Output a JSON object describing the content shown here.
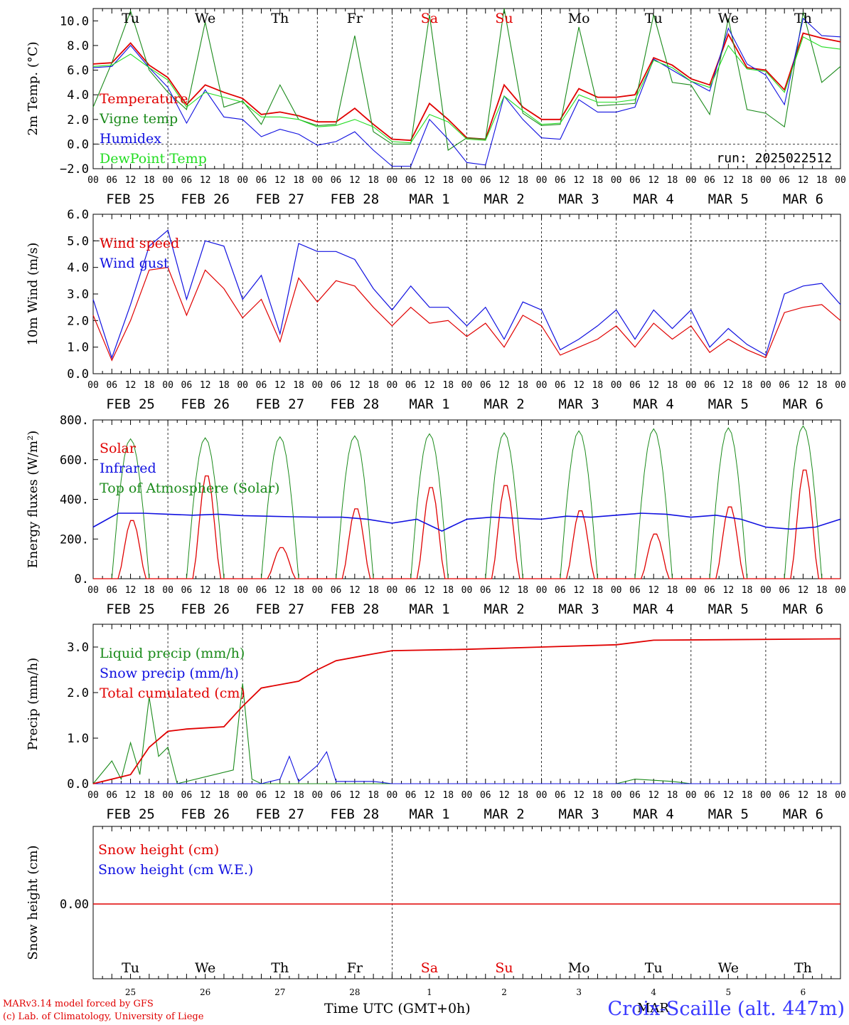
{
  "station": "Croix-Scaille (alt. 447m)",
  "model_credit": "MARv3.14 model forced by GFS",
  "lab_credit": "(c) Lab. of Climatology, University of Liege",
  "x_axis_label": "Time UTC (GMT+0h)",
  "month_label": "MAR",
  "run_label": "run: 2025022512",
  "hour_ticks": [
    "00",
    "06",
    "12",
    "18"
  ],
  "date_labels": [
    "FEB 25",
    "FEB 26",
    "FEB 27",
    "FEB 28",
    "MAR  1",
    "MAR  2",
    "MAR  3",
    "MAR  4",
    "MAR  5",
    "MAR  6"
  ],
  "weekdays": [
    {
      "label": "Tu",
      "color": "#000000"
    },
    {
      "label": "We",
      "color": "#000000"
    },
    {
      "label": "Th",
      "color": "#000000"
    },
    {
      "label": "Fr",
      "color": "#000000"
    },
    {
      "label": "Sa",
      "color": "#e00000"
    },
    {
      "label": "Su",
      "color": "#e00000"
    },
    {
      "label": "Mo",
      "color": "#000000"
    },
    {
      "label": "Tu",
      "color": "#000000"
    },
    {
      "label": "We",
      "color": "#000000"
    },
    {
      "label": "Th",
      "color": "#000000"
    }
  ],
  "day_numbers": [
    "25",
    "26",
    "27",
    "28",
    "1",
    "2",
    "3",
    "4",
    "5",
    "6"
  ],
  "colors": {
    "red": "#e00000",
    "green": "#1a8a1a",
    "blue": "#1010e0",
    "lightgreen": "#22dd22",
    "grid": "#000000"
  },
  "chart_data": [
    {
      "type": "line",
      "ylabel": "2m Temp. (°C)",
      "ylim": [
        -2,
        11
      ],
      "yticks": [
        "−2.0",
        "0.0",
        "2.0",
        "4.0",
        "6.0",
        "8.0",
        "10.0"
      ],
      "ytick_values": [
        -2,
        0,
        2,
        4,
        6,
        8,
        10
      ],
      "ref_line": 0,
      "x_hours": [
        0,
        6,
        12,
        18,
        24,
        30,
        36,
        42,
        48,
        54,
        60,
        66,
        72,
        78,
        84,
        90,
        96,
        102,
        108,
        114,
        120,
        126,
        132,
        138,
        144,
        150,
        156,
        162,
        168,
        174,
        180,
        186,
        192,
        198,
        204,
        210,
        216,
        222,
        228,
        234,
        240
      ],
      "series": [
        {
          "name": "Temperature",
          "color": "red",
          "values": [
            6.5,
            6.6,
            8.2,
            6.4,
            5.4,
            3.2,
            4.8,
            4.2,
            3.7,
            2.4,
            2.6,
            2.3,
            1.8,
            1.8,
            2.9,
            1.6,
            0.4,
            0.3,
            3.3,
            2.0,
            0.5,
            0.4,
            4.8,
            3.0,
            2.0,
            2.0,
            4.5,
            3.8,
            3.8,
            4.0,
            7.0,
            6.4,
            5.3,
            4.8,
            8.9,
            6.2,
            6.0,
            4.4,
            9.0,
            8.6,
            8.3
          ]
        },
        {
          "name": "Vigne temp",
          "color": "green",
          "values": [
            3.0,
            6.6,
            10.8,
            6.0,
            4.2,
            2.8,
            9.9,
            3.0,
            3.5,
            1.6,
            4.8,
            2.0,
            1.5,
            1.6,
            8.8,
            1.0,
            0.0,
            0.0,
            10.5,
            -0.5,
            0.5,
            0.4,
            11.0,
            2.5,
            1.5,
            1.6,
            9.5,
            3.1,
            3.2,
            3.3,
            10.5,
            5.0,
            4.8,
            2.4,
            10.2,
            2.8,
            2.5,
            1.4,
            10.7,
            5.0,
            6.3
          ]
        },
        {
          "name": "Humidex",
          "color": "blue",
          "values": [
            6.2,
            6.3,
            8.0,
            6.2,
            4.6,
            1.7,
            4.4,
            2.2,
            2.0,
            0.6,
            1.2,
            0.8,
            -0.1,
            0.2,
            1.0,
            -0.5,
            -1.8,
            -1.8,
            2.0,
            0.4,
            -1.5,
            -1.7,
            3.9,
            2.0,
            0.5,
            0.4,
            3.6,
            2.6,
            2.6,
            3.0,
            6.9,
            6.0,
            5.1,
            4.3,
            9.4,
            6.5,
            5.6,
            3.2,
            10.2,
            8.8,
            8.7
          ]
        },
        {
          "name": "DewPoint Temp",
          "color": "lightgreen",
          "values": [
            6.3,
            6.4,
            7.3,
            6.2,
            5.2,
            3.0,
            4.2,
            3.8,
            3.4,
            2.2,
            2.2,
            2.0,
            1.4,
            1.5,
            2.0,
            1.4,
            0.2,
            0.1,
            2.4,
            1.8,
            0.4,
            0.3,
            3.9,
            2.7,
            1.6,
            1.7,
            4.0,
            3.4,
            3.4,
            3.6,
            6.8,
            6.2,
            5.1,
            4.6,
            8.0,
            6.1,
            5.9,
            4.2,
            8.7,
            7.9,
            7.7
          ]
        }
      ]
    },
    {
      "type": "line",
      "ylabel": "10m Wind (m/s)",
      "ylim": [
        0,
        6
      ],
      "yticks": [
        "0.0",
        "1.0",
        "2.0",
        "3.0",
        "4.0",
        "5.0",
        "6.0"
      ],
      "ytick_values": [
        0,
        1,
        2,
        3,
        4,
        5,
        6
      ],
      "ref_line": 5,
      "x_hours": [
        0,
        6,
        12,
        18,
        24,
        30,
        36,
        42,
        48,
        54,
        60,
        66,
        72,
        78,
        84,
        90,
        96,
        102,
        108,
        114,
        120,
        126,
        132,
        138,
        144,
        150,
        156,
        162,
        168,
        174,
        180,
        186,
        192,
        198,
        204,
        210,
        216,
        222,
        228,
        234,
        240
      ],
      "series": [
        {
          "name": "Wind speed",
          "color": "red",
          "values": [
            2.2,
            0.5,
            2.0,
            3.9,
            4.0,
            2.2,
            3.9,
            3.2,
            2.1,
            2.8,
            1.2,
            3.6,
            2.7,
            3.5,
            3.3,
            2.5,
            1.8,
            2.5,
            1.9,
            2.0,
            1.4,
            1.9,
            1.0,
            2.2,
            1.8,
            0.7,
            1.0,
            1.3,
            1.8,
            1.0,
            1.9,
            1.3,
            1.8,
            0.8,
            1.3,
            0.9,
            0.6,
            2.3,
            2.5,
            2.6,
            2.0
          ]
        },
        {
          "name": "Wind gust",
          "color": "blue",
          "values": [
            2.8,
            0.6,
            2.6,
            4.8,
            5.4,
            2.8,
            5.0,
            4.8,
            2.8,
            3.7,
            1.5,
            4.9,
            4.6,
            4.6,
            4.3,
            3.2,
            2.4,
            3.3,
            2.5,
            2.5,
            1.8,
            2.5,
            1.3,
            2.7,
            2.4,
            0.9,
            1.3,
            1.8,
            2.4,
            1.3,
            2.4,
            1.7,
            2.4,
            1.0,
            1.7,
            1.1,
            0.7,
            3.0,
            3.3,
            3.4,
            2.6
          ]
        }
      ]
    },
    {
      "type": "line",
      "ylabel": "Energy fluxes (W/m²)",
      "ylim": [
        0,
        800
      ],
      "yticks": [
        "0.",
        "200.",
        "400.",
        "600.",
        "800."
      ],
      "ytick_values": [
        0,
        200,
        400,
        600,
        800
      ],
      "legend_extra": "Top of Atmosphere (Solar)",
      "series": [
        {
          "name": "Solar",
          "color": "red",
          "peaks": [
            300,
            530,
            160,
            360,
            470,
            480,
            350,
            230,
            370,
            560
          ]
        },
        {
          "name": "Infrared",
          "color": "blue",
          "values": [
            260,
            330,
            330,
            325,
            320,
            325,
            318,
            315,
            312,
            310,
            310,
            300,
            280,
            300,
            240,
            300,
            310,
            305,
            300,
            315,
            310,
            320,
            330,
            325,
            310,
            320,
            300,
            260,
            250,
            260,
            300
          ]
        },
        {
          "name": "Top of Atmosphere (Solar)",
          "color": "green",
          "peaks": [
            705,
            710,
            715,
            720,
            730,
            735,
            745,
            755,
            760,
            770
          ]
        }
      ]
    },
    {
      "type": "line",
      "ylabel": "Precip (mm/h)",
      "ylim": [
        0,
        3.5
      ],
      "yticks": [
        "0.0",
        "1.0",
        "2.0",
        "3.0"
      ],
      "ytick_values": [
        0,
        1,
        2,
        3
      ],
      "series": [
        {
          "name": "Liquid precip (mm/h)",
          "color": "green",
          "points": [
            [
              0,
              0
            ],
            [
              6,
              0.5
            ],
            [
              9,
              0.1
            ],
            [
              12,
              0.9
            ],
            [
              15,
              0.2
            ],
            [
              18,
              1.9
            ],
            [
              21,
              0.6
            ],
            [
              24,
              0.8
            ],
            [
              27,
              0
            ],
            [
              45,
              0.3
            ],
            [
              48,
              2.2
            ],
            [
              51,
              0.1
            ],
            [
              54,
              0
            ],
            [
              168,
              0
            ],
            [
              174,
              0.1
            ],
            [
              186,
              0.05
            ],
            [
              192,
              0
            ],
            [
              240,
              0
            ]
          ]
        },
        {
          "name": "Snow precip (mm/h)",
          "color": "blue",
          "points": [
            [
              0,
              0
            ],
            [
              54,
              0
            ],
            [
              60,
              0.1
            ],
            [
              63,
              0.6
            ],
            [
              66,
              0.05
            ],
            [
              72,
              0.4
            ],
            [
              75,
              0.7
            ],
            [
              78,
              0.05
            ],
            [
              90,
              0.05
            ],
            [
              96,
              0
            ],
            [
              240,
              0
            ]
          ]
        },
        {
          "name": "Total cumulated (cm)",
          "color": "red",
          "points": [
            [
              0,
              0
            ],
            [
              6,
              0.1
            ],
            [
              12,
              0.2
            ],
            [
              18,
              0.8
            ],
            [
              24,
              1.15
            ],
            [
              30,
              1.2
            ],
            [
              42,
              1.25
            ],
            [
              48,
              1.7
            ],
            [
              54,
              2.1
            ],
            [
              66,
              2.25
            ],
            [
              72,
              2.5
            ],
            [
              78,
              2.7
            ],
            [
              90,
              2.85
            ],
            [
              96,
              2.92
            ],
            [
              120,
              2.95
            ],
            [
              144,
              3.0
            ],
            [
              168,
              3.05
            ],
            [
              180,
              3.15
            ],
            [
              240,
              3.18
            ]
          ]
        }
      ]
    },
    {
      "type": "line",
      "ylabel": "Snow height (cm)",
      "ytick_label": "0.00",
      "series": [
        {
          "name": "Snow height (cm)",
          "color": "red",
          "constant": 0
        },
        {
          "name": "Snow height (cm W.E.)",
          "color": "blue",
          "constant": 0
        }
      ]
    }
  ]
}
